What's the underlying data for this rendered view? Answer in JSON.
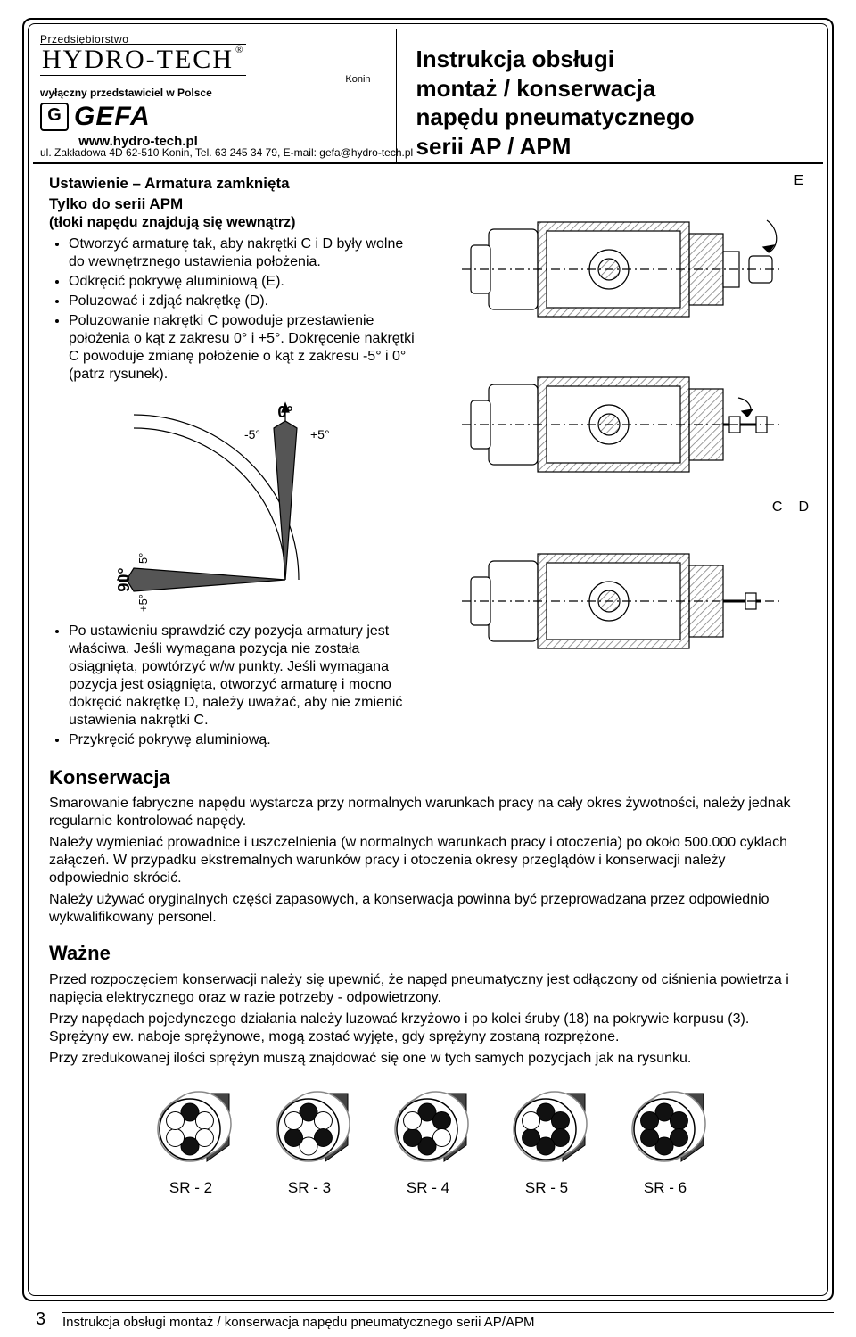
{
  "header": {
    "small_top": "Przedsiębiorstwo",
    "brand1": "HYDRO-TECH",
    "reg": "®",
    "konin": "Konin",
    "distr": "wyłączny przedstawiciel w Polsce",
    "g_mark": "G",
    "gefa": "GEFA",
    "url": "www.hydro-tech.pl",
    "addr": "ul. Zakładowa 4D 62-510 Konin, Tel. 63 245 34 79, E-mail: gefa@hydro-tech.pl",
    "title_l1": "Instrukcja obsługi",
    "title_l2": "montaż / konserwacja",
    "title_l3": "napędu pneumatycznego",
    "title_l4": "serii AP / APM"
  },
  "section1": {
    "h": "Ustawienie – Armatura zamknięta",
    "sub": "Tylko do serii APM",
    "paren": "(tłoki napędu znajdują się wewnątrz)",
    "b1": "Otworzyć armaturę tak, aby nakrętki C i D były wolne do wewnętrznego ustawienia położenia.",
    "b2": "Odkręcić pokrywę aluminiową (E).",
    "b3": "Poluzować i zdjąć nakrętkę (D).",
    "b4": "Poluzowanie nakrętki C powoduje przestawienie położenia o kąt z zakresu 0° i +5°. Dokręcenie nakrętki C powoduje zmianę położenie o kąt z zakresu -5° i 0° (patrz rysunek).",
    "b5": "Po ustawieniu sprawdzić czy pozycja armatury jest właściwa. Jeśli wymagana pozycja nie została osiągnięta, powtórzyć w/w punkty. Jeśli wymagana pozycja jest osiągnięta, otworzyć armaturę i mocno dokręcić nakrętkę D, należy uważać, aby nie zmienić ustawienia nakrętki C.",
    "b6": "Przykręcić pokrywę aluminiową."
  },
  "angles": {
    "zero": "0°",
    "m5_top": "-5°",
    "p5_top": "+5°",
    "ninety": "90°",
    "m5_left": "-5°",
    "p5_left": "+5°"
  },
  "labels": {
    "E": "E",
    "C": "C",
    "D": "D"
  },
  "maint": {
    "h": "Konserwacja",
    "p1": "Smarowanie fabryczne napędu wystarcza przy normalnych warunkach pracy na cały okres żywotności, należy jednak regularnie kontrolować napędy.",
    "p2": "Należy wymieniać prowadnice i uszczelnienia (w normalnych warunkach pracy i otoczenia) po około 500.000 cyklach załączeń. W przypadku ekstremalnych warunków pracy i otoczenia okresy przeglądów i konserwacji należy odpowiednio skrócić.",
    "p3": "Należy używać oryginalnych części zapasowych, a konserwacja powinna być przeprowadzana przez odpowiednio wykwalifikowany personel."
  },
  "important": {
    "h": "Ważne",
    "p1": "Przed rozpoczęciem konserwacji należy się upewnić, że napęd pneumatyczny jest odłączony od ciśnienia powietrza i napięcia elektrycznego oraz w razie potrzeby - odpowietrzony.",
    "p2": "Przy napędach pojedynczego działania należy luzować krzyżowo i po kolei śruby (18) na pokrywie korpusu (3). Sprężyny ew. naboje sprężynowe, mogą zostać wyjęte, gdy sprężyny zostaną rozprężone.",
    "p3": "Przy zredukowanej ilości sprężyn muszą znajdować się one w tych samych pozycjach jak na rysunku."
  },
  "springs": {
    "items": [
      "SR - 2",
      "SR - 3",
      "SR - 4",
      "SR - 5",
      "SR - 6"
    ],
    "filled": {
      "SR - 2": [
        1,
        0,
        0,
        1,
        0,
        0
      ],
      "SR - 3": [
        1,
        0,
        1,
        0,
        1,
        0
      ],
      "SR - 4": [
        1,
        1,
        0,
        1,
        1,
        0
      ],
      "SR - 5": [
        1,
        1,
        1,
        1,
        1,
        0
      ],
      "SR - 6": [
        1,
        1,
        1,
        1,
        1,
        1
      ]
    },
    "color_fill": "#111111",
    "color_empty": "#ffffff",
    "ring_color": "#888888"
  },
  "actuator": {
    "body_color": "#ffffff",
    "stroke": "#000000",
    "hatch": "#808080"
  },
  "footer": {
    "page": "3",
    "line": "Instrukcja obsługi montaż / konserwacja napędu pneumatycznego serii AP/APM"
  }
}
